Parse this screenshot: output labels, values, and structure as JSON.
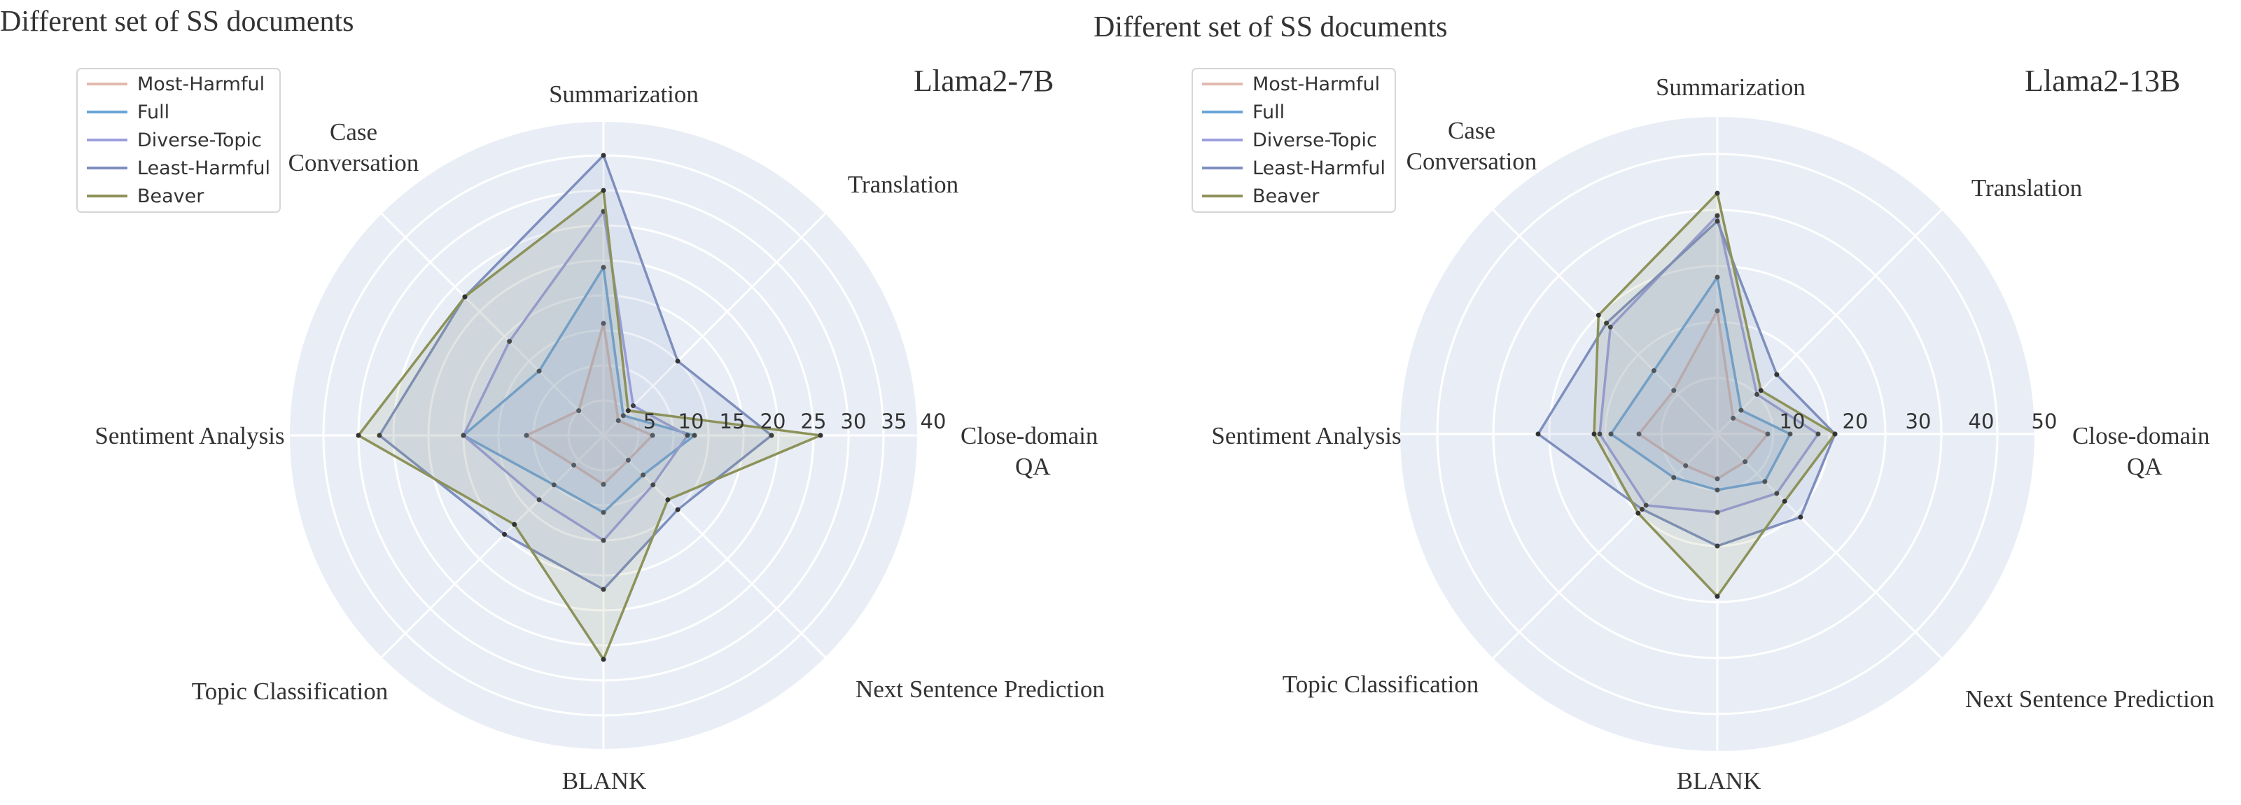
{
  "chart_data": [
    {
      "type": "radar",
      "title": "Different set of SS documents",
      "model_label": "Llama2-7B",
      "categories": [
        "Summarization",
        "Translation",
        "Close-domain\nQA",
        "Next Sentence Prediction",
        "BLANK",
        "Topic Classification",
        "Sentiment Analysis",
        "Case\nConversation"
      ],
      "radial_ticks": [
        "5",
        "10",
        "15",
        "20",
        "25",
        "30",
        "35",
        "40"
      ],
      "rlim": [
        0,
        40
      ],
      "grid": true,
      "legend_position": "top-left",
      "series": [
        {
          "name": "Most-Harmful",
          "color": "#e1b9ad",
          "values": [
            16,
            3,
            7,
            5,
            7,
            6,
            11,
            5
          ]
        },
        {
          "name": "Full",
          "color": "#6aa5d8",
          "values": [
            24,
            4,
            13,
            8,
            11,
            10,
            20,
            13
          ]
        },
        {
          "name": "Diverse-Topic",
          "color": "#9b9fdc",
          "values": [
            32,
            6,
            12,
            10,
            15,
            13,
            20,
            19
          ]
        },
        {
          "name": "Least-Harmful",
          "color": "#7e8fbe",
          "values": [
            40,
            15,
            24,
            15,
            22,
            20,
            32,
            28
          ]
        },
        {
          "name": "Beaver",
          "color": "#8c9259",
          "values": [
            35,
            5,
            31,
            13,
            32,
            18,
            35,
            28
          ]
        }
      ]
    },
    {
      "type": "radar",
      "title": "Different set of SS documents",
      "model_label": "Llama2-13B",
      "categories": [
        "Summarization",
        "Translation",
        "Close-domain\nQA",
        "Next Sentence Prediction",
        "BLANK",
        "Topic Classification",
        "Sentiment Analysis",
        "Case\nConversation"
      ],
      "radial_ticks": [
        "10",
        "20",
        "30",
        "40",
        "50"
      ],
      "rlim": [
        0,
        50
      ],
      "grid": true,
      "legend_position": "top-left",
      "series": [
        {
          "name": "Most-Harmful",
          "color": "#e1b9ad",
          "values": [
            22,
            4,
            9,
            7,
            8,
            8,
            14,
            11
          ]
        },
        {
          "name": "Full",
          "color": "#6aa5d8",
          "values": [
            28,
            6,
            13,
            12,
            10,
            11,
            19,
            16
          ]
        },
        {
          "name": "Diverse-Topic",
          "color": "#9b9fdc",
          "values": [
            39,
            10,
            18,
            15,
            14,
            18,
            21,
            27
          ]
        },
        {
          "name": "Least-Harmful",
          "color": "#7e8fbe",
          "values": [
            38,
            15,
            21,
            21,
            20,
            19,
            32,
            28
          ]
        },
        {
          "name": "Beaver",
          "color": "#8c9259",
          "values": [
            43,
            11,
            21,
            17,
            29,
            20,
            22,
            30
          ]
        }
      ]
    }
  ]
}
